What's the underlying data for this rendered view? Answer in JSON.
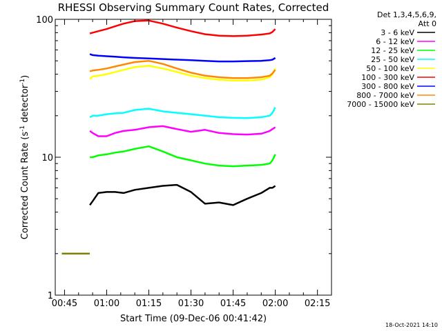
{
  "chart_data": {
    "type": "line",
    "title": "RHESSI Observing Summary Count Rates, Corrected",
    "xlabel": "Start Time (09-Dec-06 00:41:42)",
    "ylabel": "Corrected Count Rate (s",
    "ylabel_sup1": "-1",
    "ylabel_mid": " detector",
    "ylabel_sup2": "-1",
    "ylabel_end": ")",
    "x_ticks": [
      "00:45",
      "01:00",
      "01:15",
      "01:30",
      "01:45",
      "02:00",
      "02:15"
    ],
    "x_tick_minutes": [
      45,
      60,
      75,
      90,
      105,
      120,
      135
    ],
    "xlim_minutes": [
      41.7,
      140
    ],
    "y_scale": "log",
    "ylim": [
      1,
      100
    ],
    "y_ticks": [
      "1",
      "10",
      "100"
    ],
    "legend_header": [
      "Det 1,3,4,5,6,9,",
      "Att 0"
    ],
    "legend_position": "top-right",
    "footer_date": "18-Oct-2021 14:10",
    "series": [
      {
        "name": "3 - 6 keV",
        "color": "#000000",
        "x": [
          54,
          55,
          57,
          60,
          63,
          66,
          70,
          75,
          80,
          85,
          90,
          95,
          100,
          105,
          110,
          115,
          118,
          119,
          120
        ],
        "y": [
          4.5,
          4.8,
          5.5,
          5.6,
          5.6,
          5.5,
          5.8,
          6.0,
          6.2,
          6.3,
          5.6,
          4.6,
          4.7,
          4.5,
          5.0,
          5.5,
          6.0,
          6.0,
          6.2
        ]
      },
      {
        "name": "6 - 12 keV",
        "color": "#ff00ff",
        "x": [
          54,
          55,
          57,
          60,
          63,
          66,
          70,
          75,
          80,
          85,
          90,
          95,
          100,
          105,
          110,
          115,
          118,
          119,
          120
        ],
        "y": [
          15.5,
          15.0,
          14.2,
          14.2,
          15.0,
          15.5,
          15.8,
          16.5,
          16.8,
          16.0,
          15.3,
          15.8,
          15.0,
          14.7,
          14.6,
          14.8,
          15.5,
          16.0,
          16.5
        ]
      },
      {
        "name": "12 - 25 keV",
        "color": "#00ff00",
        "x": [
          54,
          55,
          57,
          60,
          63,
          66,
          70,
          75,
          80,
          85,
          90,
          95,
          100,
          105,
          110,
          115,
          118,
          119,
          120
        ],
        "y": [
          10.0,
          10.0,
          10.3,
          10.5,
          10.8,
          11.0,
          11.5,
          12.0,
          11.0,
          10.0,
          9.5,
          9.0,
          8.7,
          8.6,
          8.7,
          8.8,
          9.0,
          9.5,
          10.5
        ]
      },
      {
        "name": "25 - 50 keV",
        "color": "#00ffff",
        "x": [
          54,
          55,
          57,
          60,
          63,
          66,
          70,
          75,
          80,
          85,
          90,
          95,
          100,
          105,
          110,
          115,
          118,
          119,
          120
        ],
        "y": [
          19.5,
          20.0,
          20.0,
          20.5,
          20.8,
          21.0,
          22.0,
          22.5,
          21.5,
          21.0,
          20.5,
          20.0,
          19.5,
          19.3,
          19.2,
          19.5,
          20.0,
          21.0,
          23.0
        ]
      },
      {
        "name": "50 - 100 keV",
        "color": "#ffff00",
        "x": [
          54,
          55,
          57,
          60,
          63,
          66,
          70,
          75,
          80,
          85,
          90,
          95,
          100,
          105,
          110,
          115,
          118,
          119,
          120
        ],
        "y": [
          37.0,
          38.5,
          39.0,
          40.0,
          41.5,
          43.0,
          45.0,
          46.0,
          44.0,
          41.5,
          39.0,
          37.5,
          36.5,
          36.0,
          36.0,
          36.5,
          38.0,
          40.0,
          44.0
        ]
      },
      {
        "name": "100 - 300 keV",
        "color": "#ff0000",
        "x": [
          54,
          55,
          57,
          60,
          63,
          66,
          70,
          75,
          80,
          85,
          90,
          95,
          100,
          105,
          110,
          115,
          118,
          119,
          120
        ],
        "y": [
          79.0,
          80.0,
          82.0,
          85.0,
          89.0,
          93.0,
          97.0,
          98.0,
          93.0,
          87.0,
          82.0,
          78.0,
          76.0,
          75.5,
          76.0,
          77.5,
          79.0,
          81.0,
          85.0
        ]
      },
      {
        "name": "300 - 800 keV",
        "color": "#0000ff",
        "x": [
          54,
          55,
          57,
          60,
          63,
          66,
          70,
          75,
          80,
          85,
          90,
          95,
          100,
          105,
          110,
          115,
          118,
          119,
          120
        ],
        "y": [
          56.0,
          55.0,
          54.5,
          54.0,
          53.5,
          53.0,
          52.5,
          52.0,
          51.5,
          51.0,
          50.5,
          50.0,
          49.5,
          49.5,
          49.8,
          50.0,
          50.5,
          51.0,
          52.5
        ]
      },
      {
        "name": "800 - 7000 keV",
        "color": "#ff8800",
        "x": [
          54,
          55,
          57,
          60,
          63,
          66,
          70,
          75,
          80,
          85,
          90,
          95,
          100,
          105,
          110,
          115,
          118,
          119,
          120
        ],
        "y": [
          42.0,
          42.5,
          43.0,
          44.0,
          45.5,
          47.0,
          49.0,
          50.0,
          47.5,
          44.0,
          41.0,
          39.0,
          38.0,
          37.5,
          37.5,
          38.0,
          39.0,
          40.5,
          43.0
        ]
      },
      {
        "name": "7000 - 15000 keV",
        "color": "#808000",
        "x": [
          44,
          48,
          50,
          52,
          54
        ],
        "y": [
          2.0,
          2.0,
          2.0,
          2.0,
          2.0
        ]
      }
    ]
  }
}
